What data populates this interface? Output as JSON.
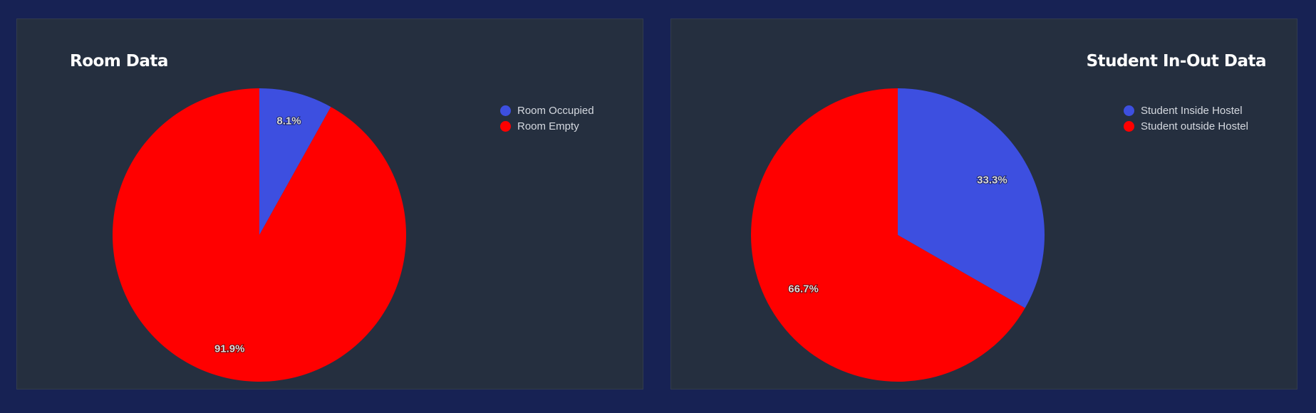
{
  "chart_data": [
    {
      "type": "pie",
      "title": "Room Data",
      "categories": [
        "Room Occupied",
        "Room Empty"
      ],
      "values": [
        8.1,
        91.9
      ],
      "labels": [
        "8.1%",
        "91.9%"
      ],
      "colors": [
        "#3d4fe0",
        "#ff0000"
      ],
      "legend_position": "top-right"
    },
    {
      "type": "pie",
      "title": "Student In-Out Data",
      "categories": [
        "Student Inside Hostel",
        "Student outside Hostel"
      ],
      "values": [
        33.3,
        66.7
      ],
      "labels": [
        "33.3%",
        "66.7%"
      ],
      "colors": [
        "#3d4fe0",
        "#ff0000"
      ],
      "legend_position": "top-right"
    }
  ]
}
